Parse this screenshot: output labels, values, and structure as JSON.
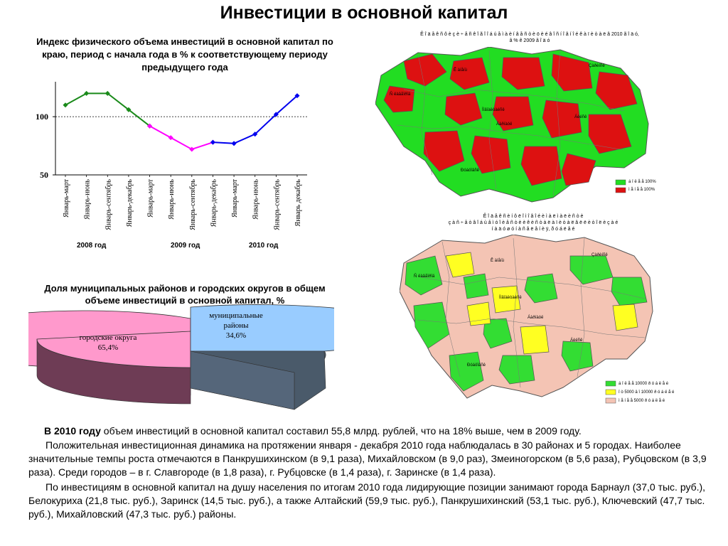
{
  "title": "Инвестиции в основной капитал",
  "line_chart": {
    "title": "Индекс физического объема инвестиций в основной капитал по краю, период с начала года  в %  к соответствующему периоду предыдущего года",
    "year_labels": [
      "2008 год",
      "2009 год",
      "2010 год"
    ],
    "chart_data": {
      "type": "line",
      "title": "Индекс физического объема инвестиций в основной капитал по краю, период с начала года  в %  к соответствующему периоду предыдущего года",
      "categories": [
        "Январь-март",
        "Январь-июнь",
        "Январь-сентябрь",
        "Январь-декабрь",
        "Январь-март",
        "Январь-июнь",
        "Январь-сентябрь",
        "Январь-декабрь",
        "Январь-март",
        "Январь-июнь",
        "Январь-сентябрь",
        "Январь декабрь"
      ],
      "series": [
        {
          "color": "#1a8a1a",
          "points": [
            [
              0,
              110
            ],
            [
              1,
              120
            ],
            [
              2,
              120
            ],
            [
              3,
              106
            ],
            [
              4,
              92
            ]
          ]
        },
        {
          "color": "#ff00ff",
          "points": [
            [
              4,
              92
            ],
            [
              5,
              82
            ],
            [
              6,
              72
            ],
            [
              7,
              78
            ]
          ]
        },
        {
          "color": "#0000ee",
          "points": [
            [
              7,
              78
            ],
            [
              8,
              77
            ],
            [
              9,
              85
            ],
            [
              10,
              102
            ],
            [
              11,
              118
            ]
          ]
        }
      ],
      "y_ticks": [
        "100",
        "50"
      ],
      "ylim": [
        50,
        130
      ],
      "reference_line": 100
    }
  },
  "pie_chart": {
    "title": "Доля муниципальных районов и городских округов в общем объеме инвестиций в основной капитал, %",
    "chart_data": {
      "type": "pie",
      "slices": [
        {
          "label": "городские округа",
          "value_text": "65,4%",
          "value": 65.4,
          "color": "#ff99cc"
        },
        {
          "label": "муниципальные районы",
          "value_text": "34,6%",
          "value": 34.6,
          "color": "#99ccff"
        }
      ]
    }
  },
  "map_top": {
    "title_line1": "Ê î ä å ê ñ ô è ç è ÷ å ñ ê î ã î  î á ú å ì à  è í â å ñ ò è ö è é  â  î ñ í î â í î é  ê à ï è ò à ë  â   2010 ã î ä ó,",
    "title_line2": "â  %  ê  2009 ã î ä ó",
    "legend": [
      {
        "color": "#22dd22",
        "text": "á î ë å å  100%"
      },
      {
        "color": "#dd1111",
        "text": "ì å í å å  100%"
      }
    ],
    "region_labels": [
      "Ñ ëàâãîðîä",
      "Ê àìåíü",
      "Çàðèíñê",
      "Íîâîàëòàéñê",
      "Áàðíàóë",
      "Áèéñê",
      "Ðóáöîâñê"
    ]
  },
  "map_bottom": {
    "title_line1": "Ê î ä å ê ñ è í ô ë î ì î â î é  è ì à ë ì à ë è ñ ò è",
    "title_line2": "ç à  ñ ÷ å ò  â  î á ù å ì  ó î è å ñ ò è  è  ê è ñ ò à  ë à ï è ò à ë  â  ë  ë è ò î ë  è  ç à é",
    "title_line3": "í à  ä ó ø ó  í à ñ å ë å í è ÿ,  ð ó á ë å é",
    "legend": [
      {
        "color": "#33dd33",
        "text": "á î ë å å  10000 ð ó á ë å é"
      },
      {
        "color": "#ffff22",
        "text": "î ò 5000 ä î 10000 ð ó á ë å é"
      },
      {
        "color": "#f4c4b4",
        "text": "ì å í å å  5000 ð ó á ë å é"
      }
    ],
    "region_labels": [
      "Ñ ëàâãîðîä",
      "Ê àìåíü",
      "Çàðèíñê",
      "Íîâîàëòàéñê",
      "Áàðíàóë",
      "Áèéñê",
      "Ðóáöîâñê"
    ]
  },
  "body": {
    "p1_bold": "В 2010 году",
    "p1_rest": " объем инвестиций в основной капитал составил 55,8 млрд. рублей, что на 18% выше, чем в 2009 году.",
    "p2": "Положительная инвестиционная динамика на протяжении января - декабря 2010 года наблюдалась в 30 районах и 5 городах. Наиболее значительные темпы роста отмечаются в Панкрушихинском (в 9,1 раза), Михайловском (в 9,0 раз), Змеиногорском (в 5,6 раза), Рубцовском (в 3,9 раза). Среди городов – в г. Славгороде (в 1,8 раза), г. Рубцовске (в 1,4 раза), г. Заринске (в 1,4 раза).",
    "p3": "По инвестициям в основной капитал на душу населения по итогам 2010 года лидирующие позиции занимают города Барнаул (37,0 тыс. руб.), Белокуриха (21,8 тыс. руб.), Заринск (14,5 тыс. руб.), а также Алтайский (59,9 тыс. руб.), Панкрушихинский (53,1 тыс. руб.), Ключевский (47,7 тыс. руб.), Михайловский (47,3 тыс. руб.) районы."
  }
}
